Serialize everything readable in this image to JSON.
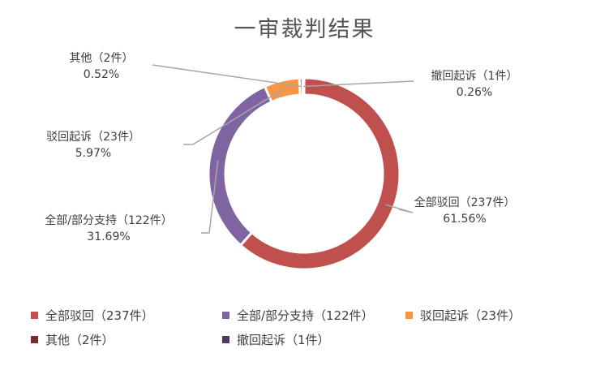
{
  "chart_data": {
    "type": "pie",
    "donut": true,
    "title": "一审裁判结果",
    "legend_position": "bottom",
    "slices": [
      {
        "name": "全部驳回（237件）",
        "value": 237,
        "percent": "61.56%",
        "color": "#C0504D"
      },
      {
        "name": "全部/部分支持（122件）",
        "value": 122,
        "percent": "31.69%",
        "color": "#8064A2"
      },
      {
        "name": "驳回起诉（23件）",
        "value": 23,
        "percent": "5.97%",
        "color": "#F79646"
      },
      {
        "name": "其他（2件）",
        "value": 2,
        "percent": "0.52%",
        "color": "#772C2A"
      },
      {
        "name": "撤回起诉（1件）",
        "value": 1,
        "percent": "0.26%",
        "color": "#4D3B62"
      }
    ]
  }
}
